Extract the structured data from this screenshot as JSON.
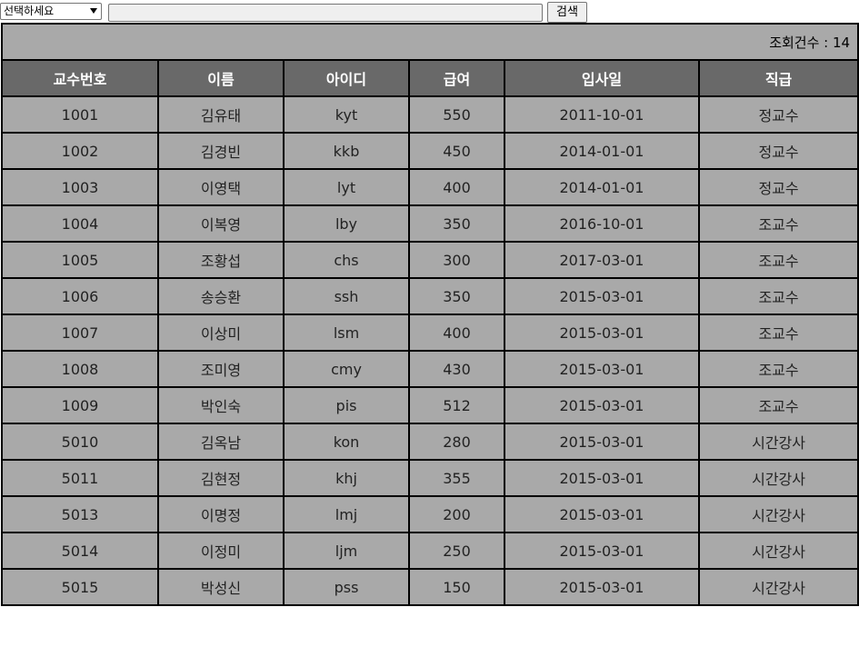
{
  "search": {
    "select_label": "선택하세요",
    "input_value": "",
    "button_label": "검색"
  },
  "count": {
    "text": "조회건수 : 14"
  },
  "table": {
    "headers": [
      "교수번호",
      "이름",
      "아이디",
      "급여",
      "입사일",
      "직급"
    ],
    "rows": [
      [
        "1001",
        "김유태",
        "kyt",
        "550",
        "2011-10-01",
        "정교수"
      ],
      [
        "1002",
        "김경빈",
        "kkb",
        "450",
        "2014-01-01",
        "정교수"
      ],
      [
        "1003",
        "이영택",
        "lyt",
        "400",
        "2014-01-01",
        "정교수"
      ],
      [
        "1004",
        "이복영",
        "lby",
        "350",
        "2016-10-01",
        "조교수"
      ],
      [
        "1005",
        "조황섭",
        "chs",
        "300",
        "2017-03-01",
        "조교수"
      ],
      [
        "1006",
        "송승환",
        "ssh",
        "350",
        "2015-03-01",
        "조교수"
      ],
      [
        "1007",
        "이상미",
        "lsm",
        "400",
        "2015-03-01",
        "조교수"
      ],
      [
        "1008",
        "조미영",
        "cmy",
        "430",
        "2015-03-01",
        "조교수"
      ],
      [
        "1009",
        "박인숙",
        "pis",
        "512",
        "2015-03-01",
        "조교수"
      ],
      [
        "5010",
        "김옥남",
        "kon",
        "280",
        "2015-03-01",
        "시간강사"
      ],
      [
        "5011",
        "김현정",
        "khj",
        "355",
        "2015-03-01",
        "시간강사"
      ],
      [
        "5013",
        "이명정",
        "lmj",
        "200",
        "2015-03-01",
        "시간강사"
      ],
      [
        "5014",
        "이정미",
        "ljm",
        "250",
        "2015-03-01",
        "시간강사"
      ],
      [
        "5015",
        "박성신",
        "pss",
        "150",
        "2015-03-01",
        "시간강사"
      ]
    ]
  }
}
